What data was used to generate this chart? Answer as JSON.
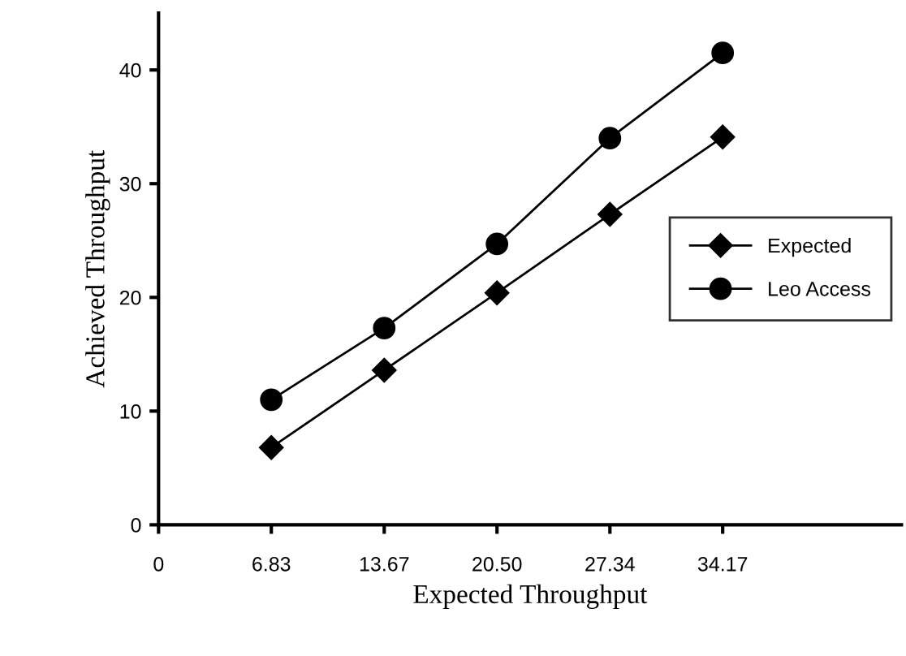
{
  "chart_data": {
    "type": "line",
    "xlabel": "Expected Throughput",
    "ylabel": "Achieved Throughput",
    "x": [
      6.83,
      13.67,
      20.5,
      27.34,
      34.17
    ],
    "series": [
      {
        "name": "Expected",
        "color": "#000000",
        "marker": "diamond",
        "values": [
          6.8,
          13.6,
          20.4,
          27.3,
          34.1
        ]
      },
      {
        "name": "Leo Access",
        "color": "#000000",
        "marker": "circle",
        "values": [
          11.0,
          17.3,
          24.7,
          34.0,
          41.5
        ]
      }
    ],
    "xlim": [
      0,
      45
    ],
    "xticks": [
      0,
      6.83,
      13.67,
      {
        "value": 20.5,
        "label": "20.50"
      },
      27.34,
      34.17
    ],
    "ylim": [
      0,
      45
    ],
    "yticks": [
      0,
      10,
      20,
      30,
      40
    ],
    "grid": false,
    "legend": "center right",
    "line_style": "solid"
  }
}
